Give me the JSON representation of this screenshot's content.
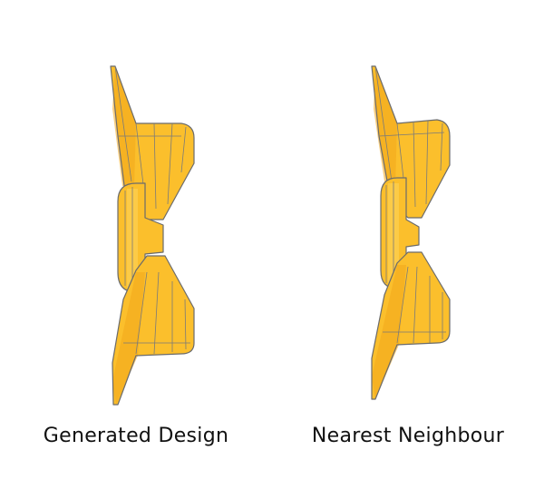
{
  "figures": [
    {
      "id": "left",
      "caption": "Generated Design"
    },
    {
      "id": "right",
      "caption": "Nearest Neighbour"
    }
  ],
  "colors": {
    "part_fill": "#FBBF2C",
    "part_shade": "#F2A81C",
    "part_highlight": "#FDD35A",
    "edge": "#6b6b6b",
    "background": "#ffffff"
  }
}
